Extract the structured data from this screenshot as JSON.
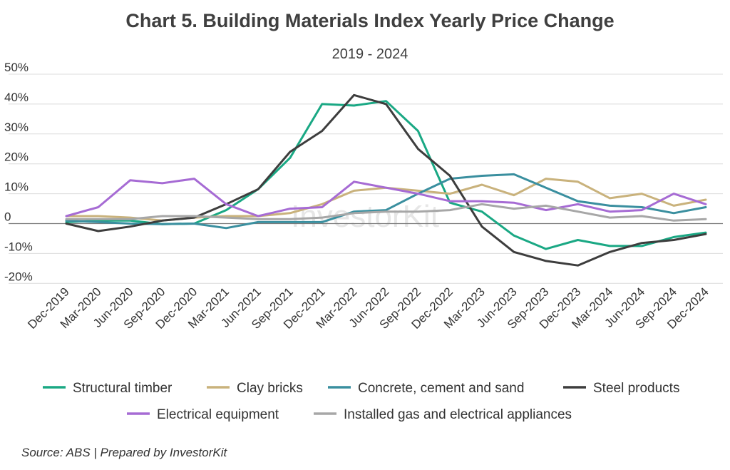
{
  "chart_data": {
    "type": "line",
    "title": "Chart 5. Building Materials Index Yearly Price Change",
    "subtitle": "2019 - 2024",
    "xlabel": "",
    "ylabel": "",
    "ylim": [
      -20,
      50
    ],
    "yticks": [
      50,
      40,
      30,
      20,
      10,
      0,
      -10,
      -20
    ],
    "ytick_labels": [
      "50%",
      "40%",
      "30%",
      "20%",
      "10%",
      "0",
      "-10%",
      "-20%"
    ],
    "categories": [
      "Dec-2019",
      "Mar-2020",
      "Jun-2020",
      "Sep-2020",
      "Dec-2020",
      "Mar-2021",
      "Jun-2021",
      "Sep-2021",
      "Dec-2021",
      "Mar-2022",
      "Jun-2022",
      "Sep-2022",
      "Dec-2022",
      "Mar-2023",
      "Jun-2023",
      "Sep-2023",
      "Dec-2023",
      "Mar-2024",
      "Jun-2024",
      "Sep-2024",
      "Dec-2024"
    ],
    "legend_position": "bottom",
    "watermark": "InvestorKit",
    "series": [
      {
        "name": "Structural timber",
        "color": "#1aa884",
        "values": [
          0.5,
          1,
          1,
          -0.2,
          0,
          4.5,
          11.5,
          22,
          40,
          39.5,
          41,
          31,
          7,
          4,
          -4,
          -8.5,
          -5.5,
          -7.5,
          -7.5,
          -4.5,
          -3
        ]
      },
      {
        "name": "Clay bricks",
        "color": "#c9b27c",
        "values": [
          2.5,
          2.5,
          2,
          1,
          2,
          2.5,
          2.5,
          3.5,
          6.5,
          11,
          12,
          11,
          10,
          13,
          9.5,
          15,
          14,
          8.5,
          10,
          6,
          8
        ]
      },
      {
        "name": "Concrete, cement and sand",
        "color": "#3a8f9f",
        "values": [
          1,
          0.5,
          0,
          -0.2,
          0,
          -1.5,
          0.5,
          0.5,
          0.5,
          4,
          4.5,
          10,
          15,
          16,
          16.5,
          12,
          7.5,
          6,
          5.5,
          3.5,
          5.5
        ]
      },
      {
        "name": "Steel products",
        "color": "#3d3d3d",
        "values": [
          0,
          -2.5,
          -1,
          1,
          2,
          6.5,
          11.5,
          24,
          31,
          43,
          40,
          25,
          16,
          -1,
          -9.5,
          -12.5,
          -14,
          -9.5,
          -6.5,
          -5.5,
          -3.5
        ]
      },
      {
        "name": "Electrical equipment",
        "color": "#a66bd4",
        "values": [
          2.5,
          5.5,
          14.5,
          13.5,
          15,
          6.5,
          2.5,
          5,
          5.5,
          14,
          12,
          10,
          7.5,
          7.5,
          7,
          4.5,
          6.5,
          4,
          4.5,
          10,
          6.5
        ]
      },
      {
        "name": "Installed gas and electrical appliances",
        "color": "#a7a7a7",
        "values": [
          1.5,
          1.5,
          1.5,
          2.5,
          2.5,
          2,
          1.5,
          1.5,
          2,
          3.5,
          4,
          4,
          4.5,
          6.5,
          5,
          6,
          4,
          2,
          2.5,
          1,
          1.5
        ]
      }
    ]
  },
  "source": "Source: ABS | Prepared by InvestorKit"
}
